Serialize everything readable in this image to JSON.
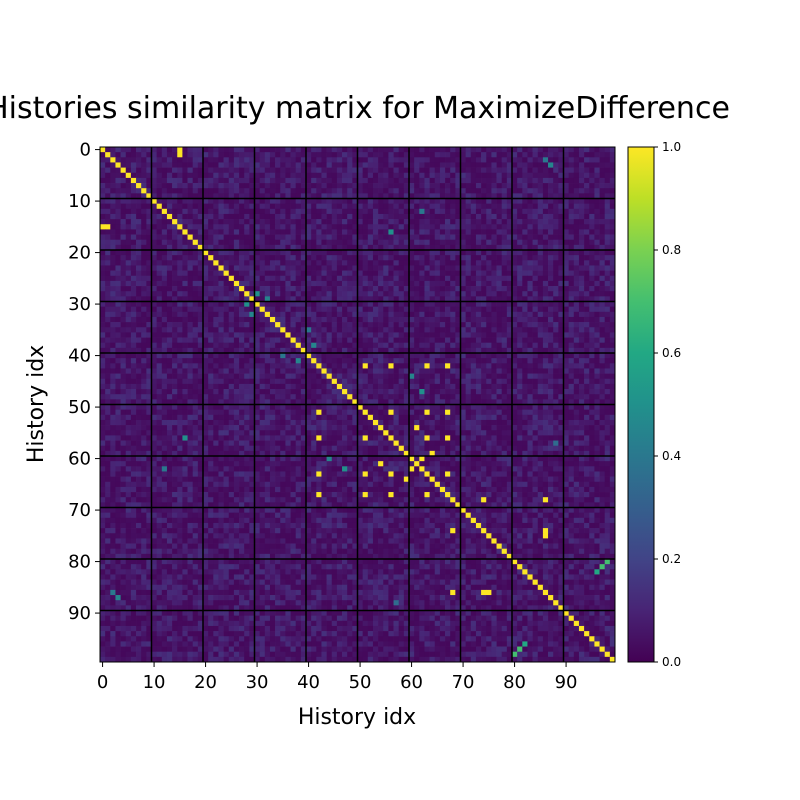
{
  "chart_data": {
    "type": "heatmap",
    "title": "Histories similarity matrix for MaximizeDifference",
    "xlabel": "History idx",
    "ylabel": "History idx",
    "size": 100,
    "x_ticks": [
      0,
      10,
      20,
      30,
      40,
      50,
      60,
      70,
      80,
      90
    ],
    "y_ticks": [
      0,
      10,
      20,
      30,
      40,
      50,
      60,
      70,
      80,
      90
    ],
    "gridlines": [
      9.5,
      19.5,
      29.5,
      39.5,
      49.5,
      59.5,
      69.5,
      79.5,
      89.5
    ],
    "value_range": [
      0.0,
      1.0
    ],
    "colormap": "viridis",
    "colorbar_ticks": [
      "0.0",
      "0.2",
      "0.4",
      "0.6",
      "0.8",
      "1.0"
    ],
    "diagonal_value": 1.0,
    "background_range": [
      0.02,
      0.14
    ],
    "identical_pairs": [
      [
        0,
        15
      ],
      [
        1,
        15
      ],
      [
        42,
        51
      ],
      [
        42,
        56
      ],
      [
        42,
        63
      ],
      [
        42,
        67
      ],
      [
        51,
        56
      ],
      [
        51,
        63
      ],
      [
        51,
        67
      ],
      [
        56,
        63
      ],
      [
        56,
        67
      ],
      [
        63,
        67
      ],
      [
        54,
        61
      ],
      [
        60,
        62
      ],
      [
        59,
        64
      ],
      [
        68,
        74
      ],
      [
        68,
        86
      ],
      [
        74,
        86
      ],
      [
        75,
        86
      ]
    ],
    "notable_cells": [
      {
        "row": 28,
        "col": 30,
        "value": 0.5
      },
      {
        "row": 29,
        "col": 32,
        "value": 0.45
      },
      {
        "row": 30,
        "col": 28,
        "value": 0.5
      },
      {
        "row": 38,
        "col": 41,
        "value": 0.45
      },
      {
        "row": 35,
        "col": 40,
        "value": 0.4
      },
      {
        "row": 56,
        "col": 16,
        "value": 0.5
      },
      {
        "row": 62,
        "col": 12,
        "value": 0.4
      },
      {
        "row": 80,
        "col": 98,
        "value": 0.7
      },
      {
        "row": 81,
        "col": 97,
        "value": 0.55
      },
      {
        "row": 96,
        "col": 82,
        "value": 0.6
      },
      {
        "row": 97,
        "col": 81,
        "value": 0.7
      },
      {
        "row": 3,
        "col": 87,
        "value": 0.45
      },
      {
        "row": 88,
        "col": 57,
        "value": 0.35
      },
      {
        "row": 86,
        "col": 2,
        "value": 0.4
      },
      {
        "row": 47,
        "col": 62,
        "value": 0.5
      },
      {
        "row": 44,
        "col": 60,
        "value": 0.45
      }
    ]
  }
}
